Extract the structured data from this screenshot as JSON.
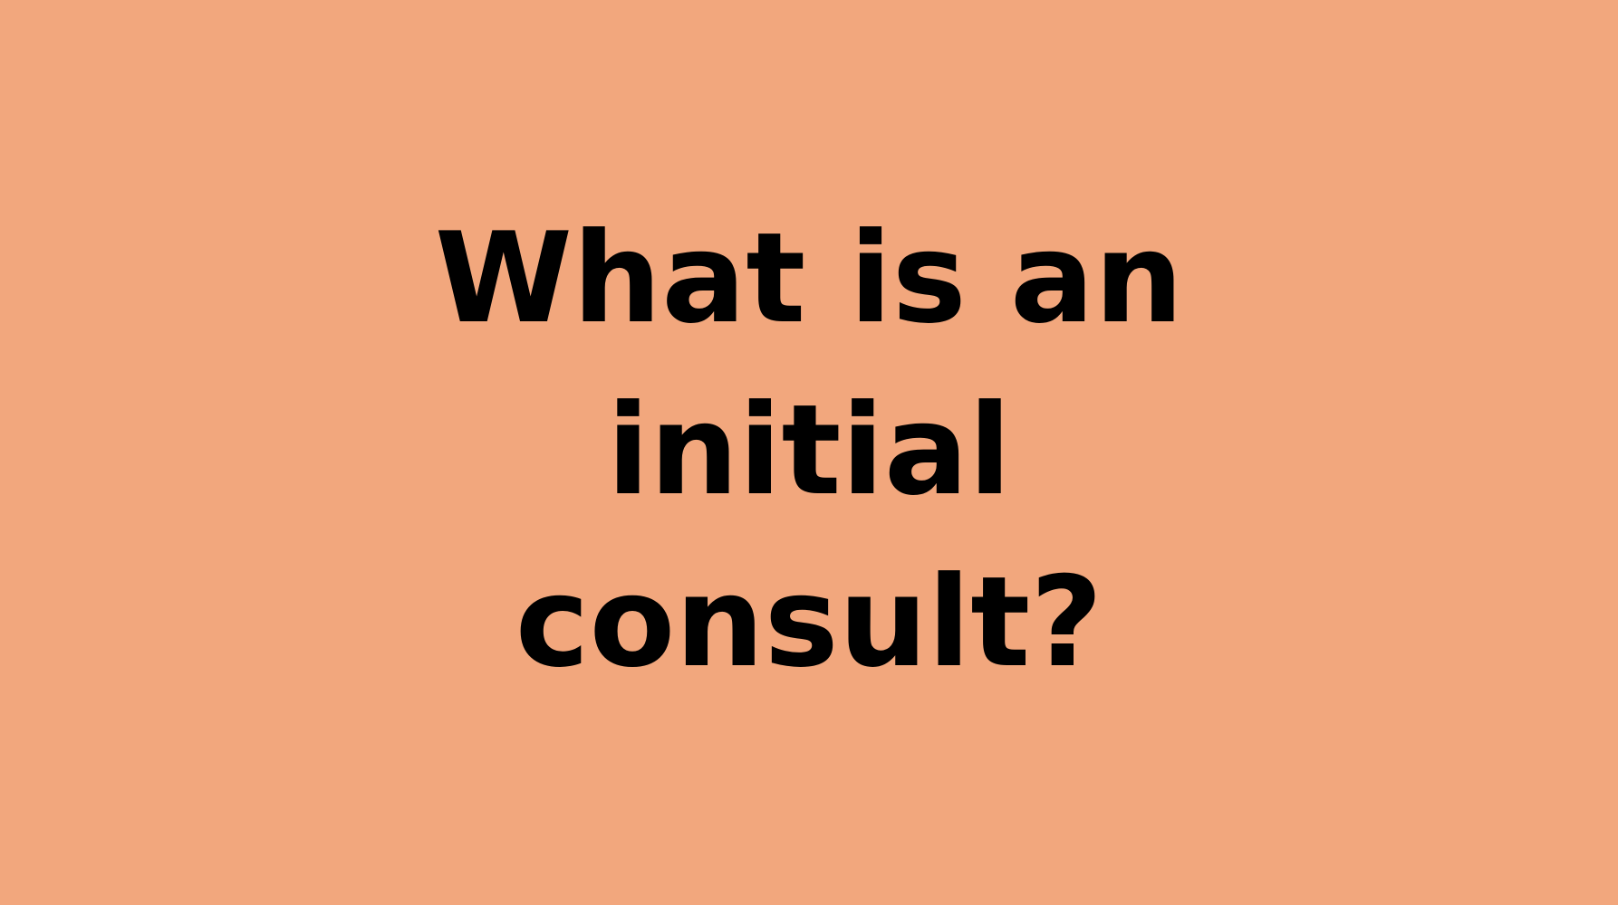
{
  "background_color": "#f2a77d",
  "text_color": "#000000",
  "headline": {
    "lines": [
      "What is an",
      "initial",
      "consult?"
    ]
  }
}
